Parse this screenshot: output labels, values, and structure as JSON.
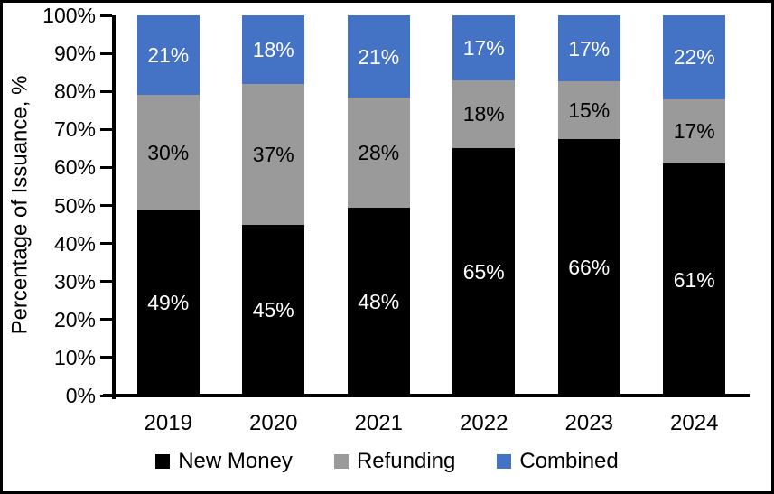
{
  "frame": {
    "background": "#ffffff",
    "border_color": "#000000"
  },
  "chart_data": {
    "type": "bar",
    "stacked": true,
    "percent_stacked": true,
    "title": "",
    "xlabel": "",
    "ylabel": "Percentage of Issuance, %",
    "ylim": [
      0,
      100
    ],
    "y_ticks": [
      "0%",
      "10%",
      "20%",
      "30%",
      "40%",
      "50%",
      "60%",
      "70%",
      "80%",
      "90%",
      "100%"
    ],
    "grid": false,
    "legend_position": "bottom",
    "categories": [
      "2019",
      "2020",
      "2021",
      "2022",
      "2023",
      "2024"
    ],
    "series": [
      {
        "name": "New Money",
        "color": "#000000",
        "label_color": "#ffffff",
        "values": [
          49,
          45,
          48,
          65,
          66,
          61
        ]
      },
      {
        "name": "Refunding",
        "color": "#9A9A9A",
        "label_color": "#000000",
        "values": [
          30,
          37,
          28,
          18,
          15,
          17
        ]
      },
      {
        "name": "Combined",
        "color": "#4472C4",
        "label_color": "#ffffff",
        "values": [
          21,
          18,
          21,
          17,
          17,
          22
        ]
      }
    ],
    "data_label_suffix": "%",
    "axis_color": "#000000",
    "text_color": "#000000"
  }
}
